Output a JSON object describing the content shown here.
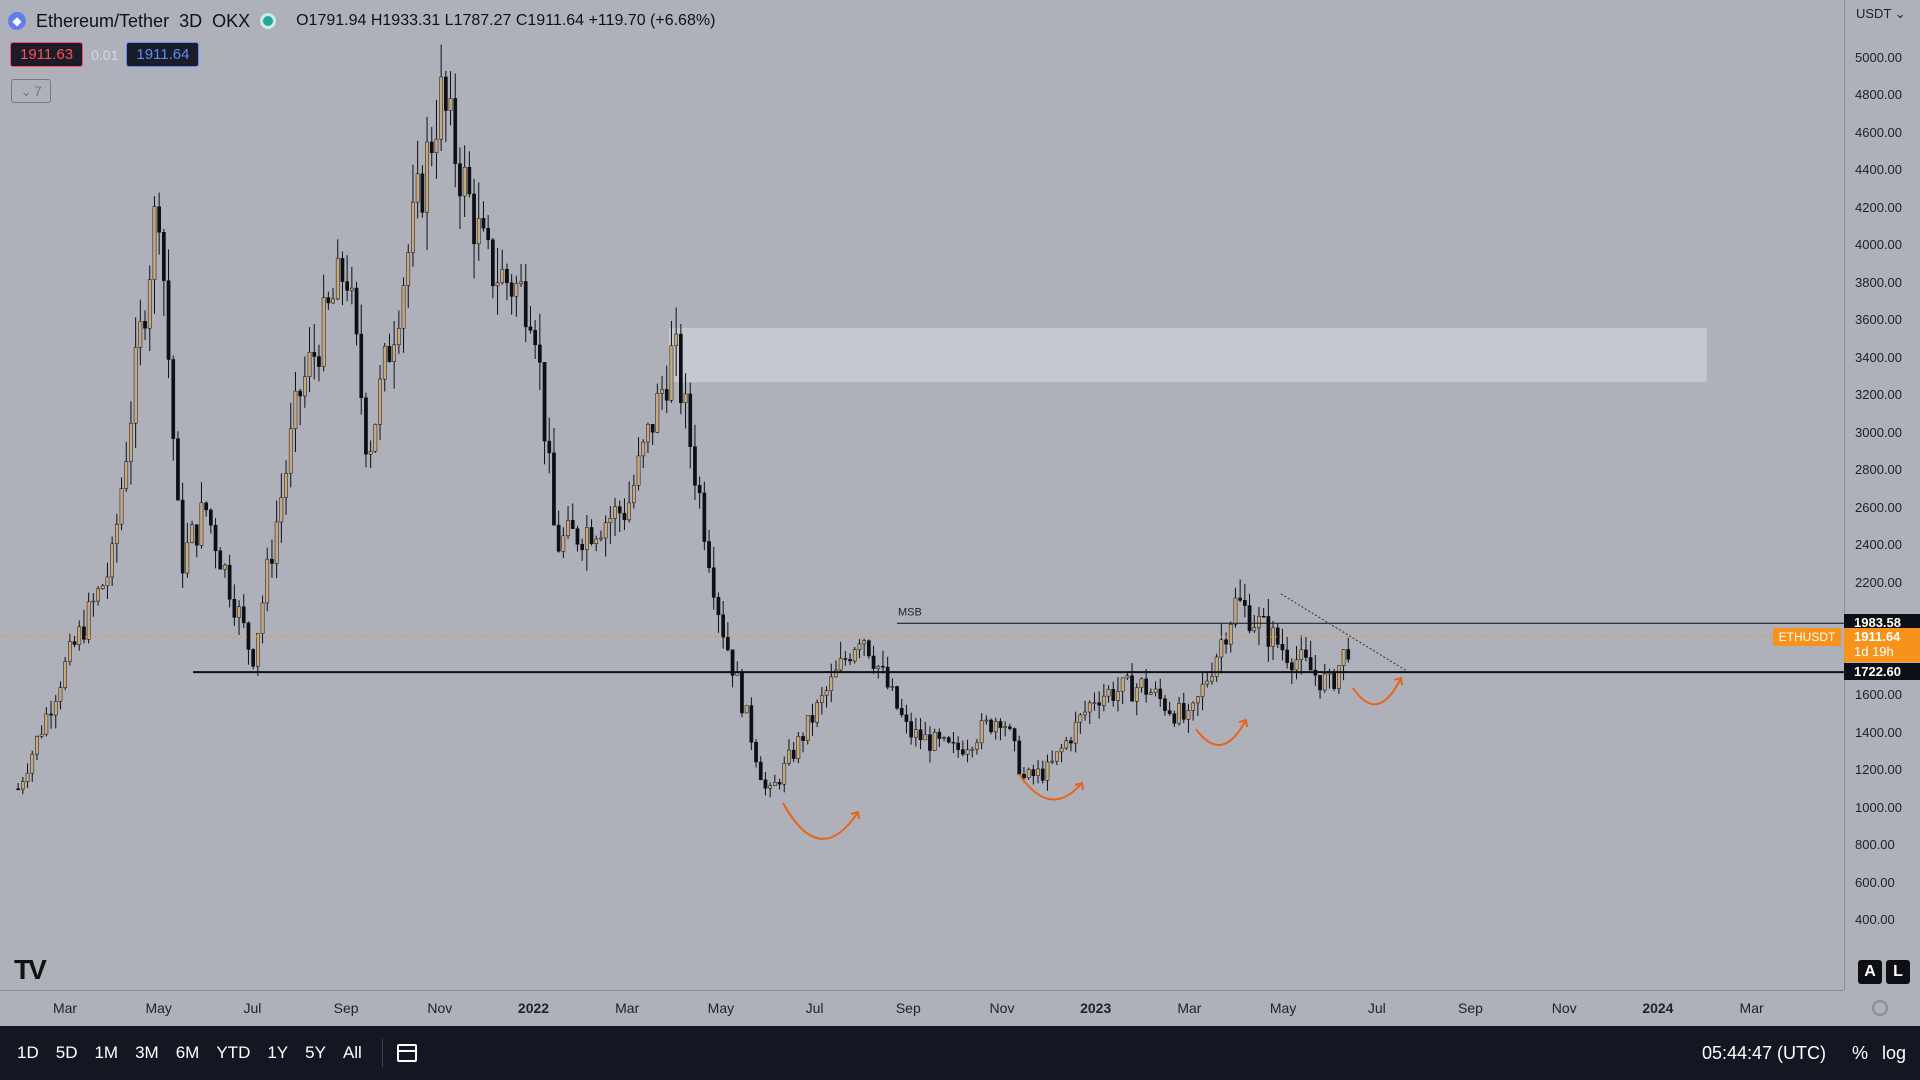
{
  "header": {
    "symbol": "Ethereum/Tether",
    "interval": "3D",
    "exchange": "OKX",
    "ohlc": "O1791.94  H1933.31  L1787.27  C1911.64  +119.70 (+6.68%)",
    "sell_price": "1911.63",
    "spread": "0.01",
    "buy_price": "1911.64",
    "collapse_count": "7"
  },
  "price_axis": {
    "currency": "USDT",
    "labels": [
      "5000.00",
      "4800.00",
      "4600.00",
      "4400.00",
      "4200.00",
      "4000.00",
      "3800.00",
      "3600.00",
      "3400.00",
      "3200.00",
      "3000.00",
      "2800.00",
      "2600.00",
      "2400.00",
      "2200.00",
      "1600.00",
      "1400.00",
      "1200.00",
      "1000.00",
      "800.00",
      "600.00",
      "400.00"
    ],
    "resistance_tag": "1983.58",
    "support_tag": "1722.60",
    "symbol_tag": "ETHUSDT",
    "current_price": "1911.64",
    "countdown": "1d 19h",
    "btn_auto": "A",
    "btn_log": "L"
  },
  "time_axis": {
    "labels": [
      {
        "text": "Mar",
        "bold": false
      },
      {
        "text": "May",
        "bold": false
      },
      {
        "text": "Jul",
        "bold": false
      },
      {
        "text": "Sep",
        "bold": false
      },
      {
        "text": "Nov",
        "bold": false
      },
      {
        "text": "2022",
        "bold": true
      },
      {
        "text": "Mar",
        "bold": false
      },
      {
        "text": "May",
        "bold": false
      },
      {
        "text": "Jul",
        "bold": false
      },
      {
        "text": "Sep",
        "bold": false
      },
      {
        "text": "Nov",
        "bold": false
      },
      {
        "text": "2023",
        "bold": true
      },
      {
        "text": "Mar",
        "bold": false
      },
      {
        "text": "May",
        "bold": false
      },
      {
        "text": "Jul",
        "bold": false
      },
      {
        "text": "Sep",
        "bold": false
      },
      {
        "text": "Nov",
        "bold": false
      },
      {
        "text": "2024",
        "bold": true
      },
      {
        "text": "Mar",
        "bold": false
      }
    ]
  },
  "annotations": {
    "msb": "MSB"
  },
  "toolbar": {
    "ranges": [
      "1D",
      "5D",
      "1M",
      "3M",
      "6M",
      "YTD",
      "1Y",
      "5Y",
      "All"
    ],
    "clock": "05:44:47 (UTC)",
    "percent": "%",
    "log": "log"
  },
  "colors": {
    "background": "#aeb1ba",
    "candle_up": "#c8a97a",
    "candle_down": "#0d0f14",
    "accent_orange": "#f7931a",
    "zone": "#c6c8cf"
  },
  "chart_data": {
    "type": "candlestick",
    "symbol": "ETHUSDT",
    "interval": "3D",
    "price_range": [
      300,
      5100
    ],
    "levels": [
      {
        "name": "resistance",
        "price": 1983.58
      },
      {
        "name": "support",
        "price": 1722.6
      },
      {
        "name": "current",
        "price": 1911.64
      }
    ],
    "supply_zone": {
      "price_low": 3270,
      "price_high": 3560,
      "from": "Apr 2022",
      "to": "Mar 2024"
    },
    "path": [
      {
        "date": "Feb 2021",
        "price": 1100
      },
      {
        "date": "Mar 2021",
        "price": 1750
      },
      {
        "date": "Apr 2021",
        "price": 2300
      },
      {
        "date": "May 2021",
        "price": 4300
      },
      {
        "date": "May 2021",
        "price": 2300
      },
      {
        "date": "Jun 2021",
        "price": 2600
      },
      {
        "date": "Jul 2021",
        "price": 1800
      },
      {
        "date": "Aug 2021",
        "price": 3200
      },
      {
        "date": "Sep 2021",
        "price": 3900
      },
      {
        "date": "Sep 2021",
        "price": 2900
      },
      {
        "date": "Nov 2021",
        "price": 4800
      },
      {
        "date": "Dec 2021",
        "price": 3900
      },
      {
        "date": "Jan 2022",
        "price": 3700
      },
      {
        "date": "Jan 2022",
        "price": 2400
      },
      {
        "date": "Mar 2022",
        "price": 2600
      },
      {
        "date": "Apr 2022",
        "price": 3450
      },
      {
        "date": "May 2022",
        "price": 2000
      },
      {
        "date": "Jun 2022",
        "price": 1050
      },
      {
        "date": "Jul 2022",
        "price": 1500
      },
      {
        "date": "Aug 2022",
        "price": 1950
      },
      {
        "date": "Sep 2022",
        "price": 1400
      },
      {
        "date": "Oct 2022",
        "price": 1300
      },
      {
        "date": "Nov 2022",
        "price": 1500
      },
      {
        "date": "Nov 2022",
        "price": 1150
      },
      {
        "date": "Dec 2022",
        "price": 1200
      },
      {
        "date": "Jan 2023",
        "price": 1600
      },
      {
        "date": "Feb 2023",
        "price": 1650
      },
      {
        "date": "Mar 2023",
        "price": 1450
      },
      {
        "date": "Apr 2023",
        "price": 2100
      },
      {
        "date": "May 2023",
        "price": 1850
      },
      {
        "date": "Jun 2023",
        "price": 1650
      },
      {
        "date": "Jun 2023",
        "price": 1911.64
      }
    ]
  }
}
